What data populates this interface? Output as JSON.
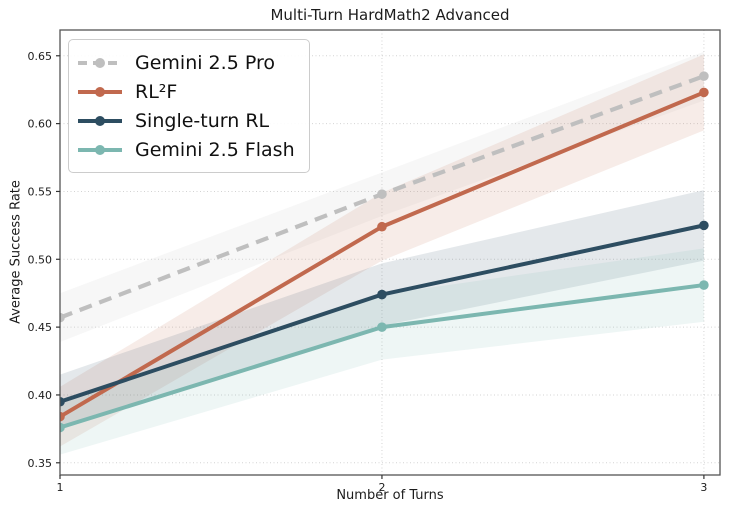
{
  "chart_data": {
    "type": "line",
    "title": "Multi-Turn HardMath2 Advanced",
    "xlabel": "Number of Turns",
    "ylabel": "Average Success Rate",
    "x": [
      1,
      2,
      3
    ],
    "xlim": [
      1.0,
      3.05
    ],
    "ylim": [
      0.341,
      0.669
    ],
    "xticks": [
      1,
      2,
      3
    ],
    "yticks": [
      0.35,
      0.4,
      0.45,
      0.5,
      0.55,
      0.6,
      0.65
    ],
    "grid": true,
    "grid_style": "dotted",
    "legend_position": "upper-left",
    "band_opacity": 0.13,
    "colors": {
      "spine": "#555555",
      "gridline": "#cfcfcf",
      "tick": "#333333"
    },
    "series": [
      {
        "name": "Gemini 2.5 Pro",
        "color": "#bfbfbf",
        "dash": true,
        "values": [
          0.457,
          0.548,
          0.635
        ],
        "band": [
          0.018,
          0.016,
          0.018
        ]
      },
      {
        "name": "RL²F",
        "color": "#c1694e",
        "dash": false,
        "values": [
          0.384,
          0.524,
          0.623
        ],
        "band": [
          0.022,
          0.025,
          0.028
        ]
      },
      {
        "name": "Single-turn RL",
        "color": "#2d4d61",
        "dash": false,
        "values": [
          0.395,
          0.474,
          0.525
        ],
        "band": [
          0.02,
          0.023,
          0.026
        ]
      },
      {
        "name": "Gemini 2.5 Flash",
        "color": "#7cb7b0",
        "dash": false,
        "values": [
          0.376,
          0.45,
          0.481
        ],
        "band": [
          0.02,
          0.024,
          0.027
        ]
      }
    ]
  }
}
